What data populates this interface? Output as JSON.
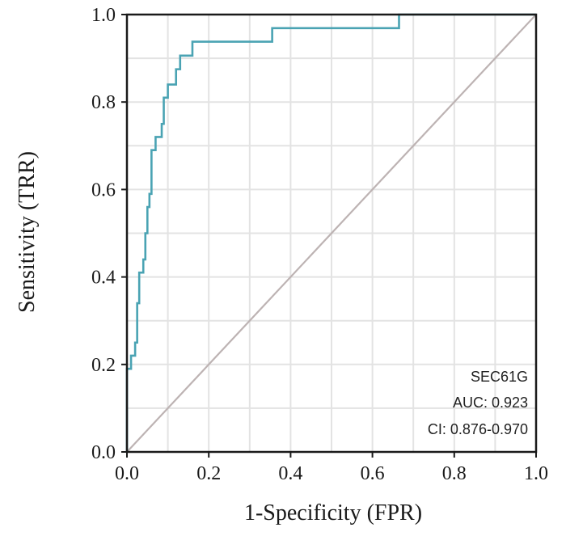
{
  "chart_data": {
    "type": "line",
    "title": "",
    "xlabel": "1-Specificity (FPR)",
    "ylabel": "Sensitivity (TRR)",
    "xlim": [
      0,
      1
    ],
    "ylim": [
      0,
      1
    ],
    "x_ticks": [
      "0.0",
      "0.2",
      "0.4",
      "0.6",
      "0.8",
      "1.0"
    ],
    "y_ticks": [
      "0.0",
      "0.2",
      "0.4",
      "0.6",
      "0.8",
      "1.0"
    ],
    "grid": true,
    "annotations": {
      "name": "SEC61G",
      "auc": "AUC: 0.923",
      "ci": "CI: 0.876-0.970"
    },
    "series": [
      {
        "color": "#4aa3b3",
        "points": [
          [
            0.0,
            0.0
          ],
          [
            0.0,
            0.19
          ],
          [
            0.01,
            0.19
          ],
          [
            0.01,
            0.22
          ],
          [
            0.02,
            0.22
          ],
          [
            0.02,
            0.25
          ],
          [
            0.025,
            0.25
          ],
          [
            0.025,
            0.34
          ],
          [
            0.03,
            0.34
          ],
          [
            0.03,
            0.41
          ],
          [
            0.04,
            0.41
          ],
          [
            0.04,
            0.44
          ],
          [
            0.045,
            0.44
          ],
          [
            0.045,
            0.5
          ],
          [
            0.05,
            0.5
          ],
          [
            0.05,
            0.56
          ],
          [
            0.055,
            0.56
          ],
          [
            0.055,
            0.59
          ],
          [
            0.06,
            0.59
          ],
          [
            0.06,
            0.69
          ],
          [
            0.07,
            0.69
          ],
          [
            0.07,
            0.72
          ],
          [
            0.085,
            0.72
          ],
          [
            0.085,
            0.75
          ],
          [
            0.09,
            0.75
          ],
          [
            0.09,
            0.81
          ],
          [
            0.1,
            0.81
          ],
          [
            0.1,
            0.84
          ],
          [
            0.12,
            0.84
          ],
          [
            0.12,
            0.875
          ],
          [
            0.13,
            0.875
          ],
          [
            0.13,
            0.906
          ],
          [
            0.16,
            0.906
          ],
          [
            0.16,
            0.938
          ],
          [
            0.355,
            0.938
          ],
          [
            0.355,
            0.969
          ],
          [
            0.665,
            0.969
          ],
          [
            0.665,
            1.0
          ],
          [
            1.0,
            1.0
          ]
        ]
      },
      {
        "color": "#bdb3b3",
        "points": [
          [
            0,
            0
          ],
          [
            1,
            1
          ]
        ]
      }
    ]
  }
}
